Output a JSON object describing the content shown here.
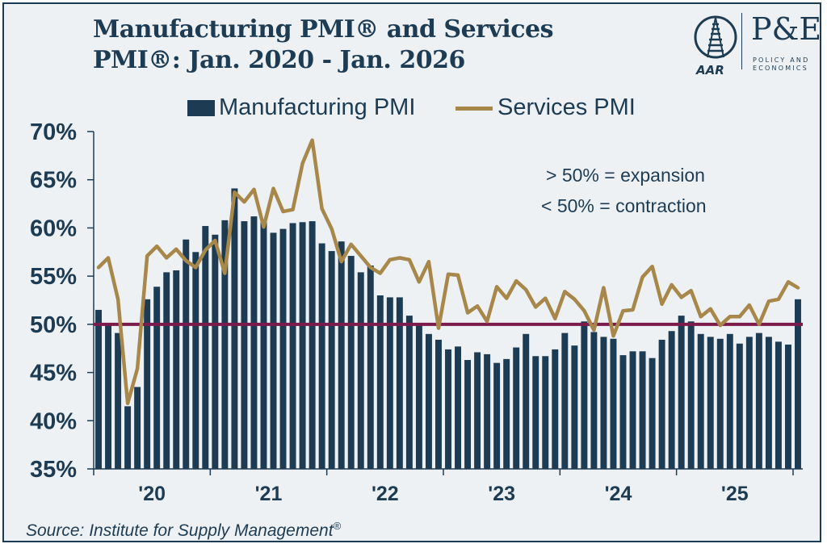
{
  "title_line1": "Manufacturing PMI® and Services",
  "title_line2": "PMI®: Jan. 2020 - Jan. 2026",
  "logo": {
    "left_text": "AAR",
    "right_text": "P&E",
    "right_sub_line1": "POLICY AND",
    "right_sub_line2": "ECONOMICS"
  },
  "source_text": "Source: Institute for Supply Management",
  "source_mark": "®",
  "colors": {
    "manufacturing": "#1d3c53",
    "services": "#a7874a",
    "threshold": "#7c1a4c",
    "background": "#eef1f3"
  },
  "chart_data": {
    "type": "bar",
    "title": "Manufacturing PMI® and Services PMI®: Jan. 2020 - Jan. 2026",
    "xlabel": "",
    "ylabel": "",
    "ylim": [
      35,
      70
    ],
    "y_ticks": [
      "35%",
      "40%",
      "45%",
      "50%",
      "55%",
      "60%",
      "65%",
      "70%"
    ],
    "year_labels": [
      "'20",
      "'21",
      "'22",
      "'23",
      "'24",
      "'25"
    ],
    "threshold": 50,
    "annotations": [
      "> 50% = expansion",
      "< 50% = contraction"
    ],
    "series": [
      {
        "name": "Manufacturing PMI",
        "type": "bar",
        "values": [
          51.5,
          50.1,
          49.1,
          41.5,
          43.5,
          52.6,
          53.9,
          55.4,
          55.6,
          58.8,
          57.5,
          60.2,
          59.3,
          60.8,
          64.1,
          60.7,
          61.2,
          60.6,
          59.5,
          59.9,
          60.5,
          60.6,
          60.7,
          58.4,
          57.6,
          58.6,
          57.1,
          55.4,
          56.1,
          53.0,
          52.8,
          52.8,
          50.9,
          50.0,
          49.0,
          48.4,
          47.4,
          47.7,
          46.3,
          47.1,
          46.9,
          46.0,
          46.4,
          47.6,
          49.0,
          46.7,
          46.7,
          47.4,
          49.1,
          47.8,
          50.3,
          49.2,
          48.7,
          48.5,
          46.8,
          47.2,
          47.2,
          46.5,
          48.4,
          49.3,
          50.9,
          50.3,
          49.0,
          48.7,
          48.5,
          49.0,
          48.0,
          48.7,
          49.1,
          48.7,
          48.2,
          47.9,
          52.6
        ]
      },
      {
        "name": "Services PMI",
        "type": "line",
        "values": [
          55.9,
          56.9,
          52.6,
          41.8,
          45.4,
          57.1,
          58.1,
          56.9,
          57.8,
          56.6,
          55.9,
          57.7,
          58.7,
          55.3,
          63.7,
          62.7,
          64.0,
          60.1,
          64.1,
          61.7,
          61.9,
          66.7,
          69.1,
          62.0,
          59.9,
          56.5,
          58.3,
          57.1,
          55.9,
          55.3,
          56.7,
          56.9,
          56.7,
          54.4,
          56.5,
          49.6,
          55.2,
          55.1,
          51.2,
          51.9,
          50.3,
          53.9,
          52.7,
          54.5,
          53.6,
          51.8,
          52.7,
          50.6,
          53.4,
          52.6,
          51.4,
          49.4,
          53.8,
          48.8,
          51.4,
          51.5,
          54.9,
          56.0,
          52.1,
          54.1,
          52.8,
          53.5,
          50.8,
          51.6,
          49.9,
          50.8,
          50.8,
          52.0,
          50.0,
          52.4,
          52.6,
          54.4,
          53.8
        ]
      }
    ]
  }
}
